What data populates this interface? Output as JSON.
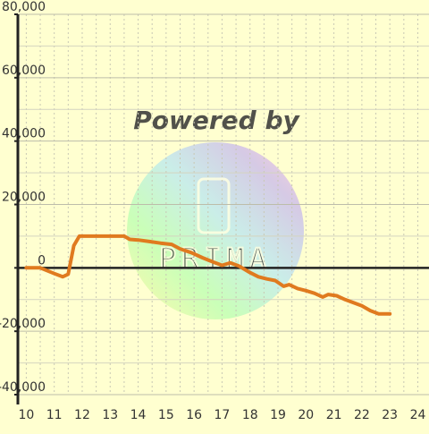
{
  "chart_data": {
    "type": "line",
    "x": [
      10.0,
      10.5,
      11.0,
      11.3,
      11.5,
      11.7,
      11.9,
      12.1,
      12.5,
      13.0,
      13.5,
      13.7,
      14.0,
      14.4,
      14.8,
      15.2,
      15.5,
      15.9,
      16.3,
      16.7,
      17.0,
      17.3,
      17.6,
      18.0,
      18.3,
      18.6,
      18.9,
      19.2,
      19.4,
      19.7,
      20.0,
      20.3,
      20.6,
      20.8,
      21.1,
      21.4,
      21.7,
      22.0,
      22.3,
      22.6,
      23.0
    ],
    "values": [
      0,
      0,
      -1800,
      -2800,
      -2000,
      7000,
      10000,
      10000,
      10000,
      10000,
      10000,
      9000,
      8800,
      8300,
      7800,
      7400,
      6000,
      4800,
      3200,
      1800,
      800,
      1600,
      600,
      -1500,
      -2800,
      -3500,
      -4000,
      -5800,
      -5300,
      -6500,
      -7200,
      -8000,
      -9200,
      -8400,
      -8800,
      -10000,
      -11000,
      -12000,
      -13500,
      -14500,
      -14500
    ],
    "xlim": [
      9.7,
      24.4
    ],
    "ylim": [
      -40000,
      80000
    ],
    "x_ticks": [
      10,
      11,
      12,
      13,
      14,
      15,
      16,
      17,
      18,
      19,
      20,
      21,
      22,
      23,
      24
    ],
    "y_ticks": [
      -40000,
      -20000,
      0,
      20000,
      40000,
      60000,
      80000
    ],
    "y_tick_labels": [
      "-40,000",
      "-20,000",
      "0",
      "20,000",
      "40,000",
      "60,000",
      "80,000"
    ],
    "grid": true,
    "colors": {
      "line": "#e07a1f",
      "background": "#ffffd0",
      "grid": "#c8c8b4",
      "axis": "#222222"
    }
  },
  "watermark": {
    "text": "Powered by",
    "logo_text": "PRIMA"
  }
}
